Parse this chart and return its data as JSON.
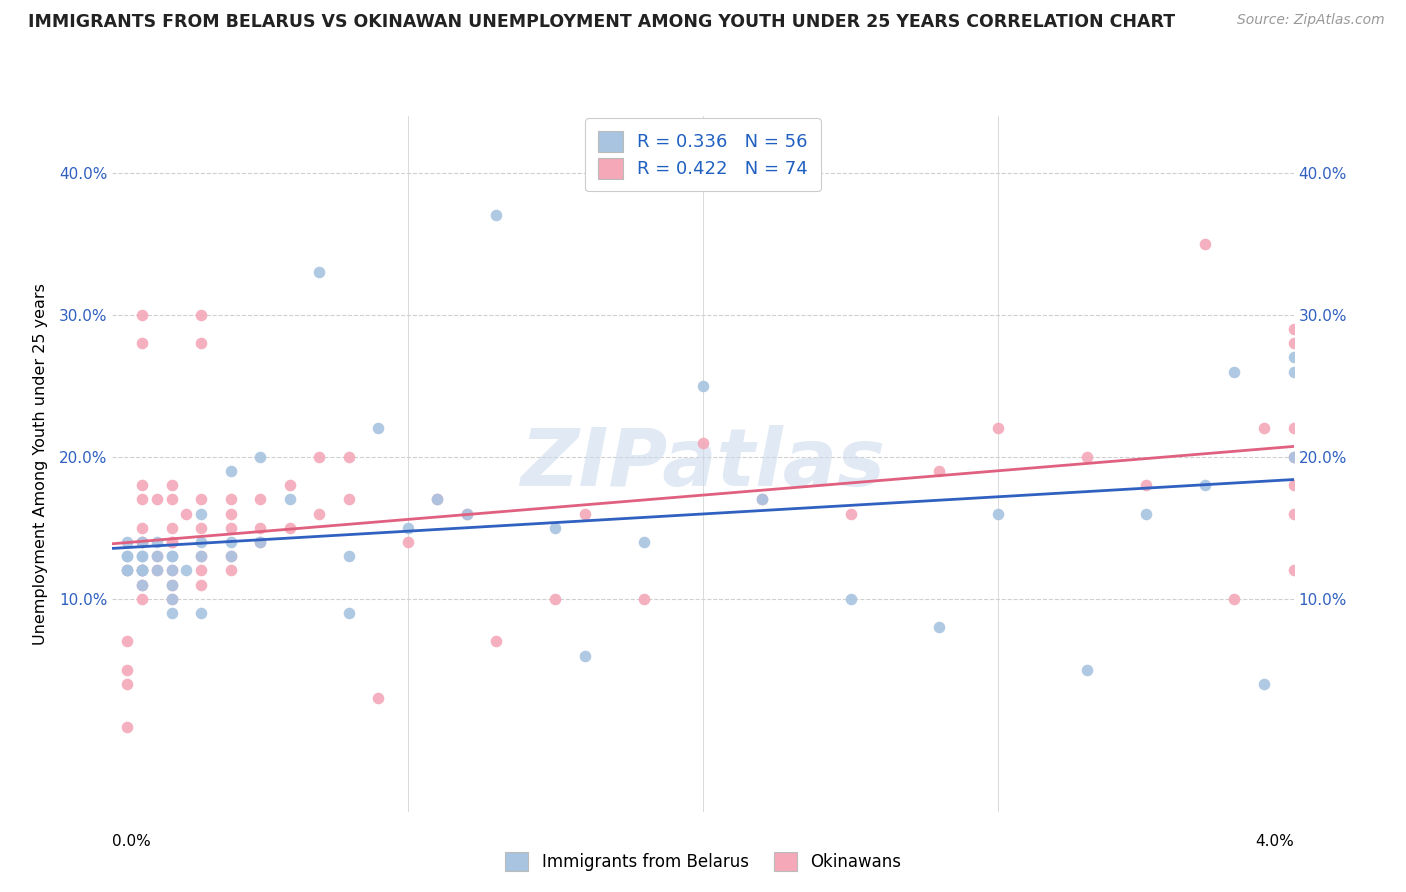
{
  "title": "IMMIGRANTS FROM BELARUS VS OKINAWAN UNEMPLOYMENT AMONG YOUTH UNDER 25 YEARS CORRELATION CHART",
  "source": "Source: ZipAtlas.com",
  "ylabel": "Unemployment Among Youth under 25 years",
  "ytick_labels": [
    "10.0%",
    "20.0%",
    "30.0%",
    "40.0%"
  ],
  "ytick_values": [
    0.1,
    0.2,
    0.3,
    0.4
  ],
  "legend_blue_R": "R = 0.336",
  "legend_blue_N": "N = 56",
  "legend_pink_R": "R = 0.422",
  "legend_pink_N": "N = 74",
  "legend_blue_label": "Immigrants from Belarus",
  "legend_pink_label": "Okinawans",
  "blue_color": "#a8c4e0",
  "pink_color": "#f4a8b8",
  "blue_line_color": "#3060c0",
  "pink_line_color": "#e06080",
  "watermark": "ZIPatlas",
  "xlim": [
    0.0,
    0.04
  ],
  "ylim": [
    -0.05,
    0.44
  ],
  "blue_scatter_x": [
    0.0005,
    0.0005,
    0.0005,
    0.0005,
    0.0005,
    0.001,
    0.001,
    0.001,
    0.001,
    0.001,
    0.001,
    0.001,
    0.0015,
    0.0015,
    0.0015,
    0.002,
    0.002,
    0.002,
    0.002,
    0.002,
    0.002,
    0.0025,
    0.003,
    0.003,
    0.003,
    0.003,
    0.004,
    0.004,
    0.004,
    0.005,
    0.005,
    0.006,
    0.007,
    0.008,
    0.008,
    0.009,
    0.01,
    0.011,
    0.012,
    0.013,
    0.015,
    0.016,
    0.018,
    0.02,
    0.022,
    0.025,
    0.028,
    0.03,
    0.033,
    0.035,
    0.037,
    0.038,
    0.039,
    0.04,
    0.04,
    0.04
  ],
  "blue_scatter_y": [
    0.13,
    0.12,
    0.14,
    0.12,
    0.13,
    0.12,
    0.13,
    0.14,
    0.13,
    0.12,
    0.11,
    0.12,
    0.13,
    0.12,
    0.14,
    0.13,
    0.11,
    0.12,
    0.1,
    0.13,
    0.09,
    0.12,
    0.14,
    0.16,
    0.09,
    0.13,
    0.14,
    0.13,
    0.19,
    0.2,
    0.14,
    0.17,
    0.33,
    0.13,
    0.09,
    0.22,
    0.15,
    0.17,
    0.16,
    0.37,
    0.15,
    0.06,
    0.14,
    0.25,
    0.17,
    0.1,
    0.08,
    0.16,
    0.05,
    0.16,
    0.18,
    0.26,
    0.04,
    0.27,
    0.26,
    0.2
  ],
  "pink_scatter_x": [
    0.0005,
    0.0005,
    0.0005,
    0.0005,
    0.0005,
    0.001,
    0.001,
    0.001,
    0.001,
    0.001,
    0.001,
    0.001,
    0.001,
    0.001,
    0.001,
    0.001,
    0.0015,
    0.0015,
    0.0015,
    0.002,
    0.002,
    0.002,
    0.002,
    0.002,
    0.002,
    0.002,
    0.002,
    0.0025,
    0.003,
    0.003,
    0.003,
    0.003,
    0.003,
    0.003,
    0.003,
    0.004,
    0.004,
    0.004,
    0.004,
    0.004,
    0.005,
    0.005,
    0.005,
    0.006,
    0.006,
    0.007,
    0.007,
    0.008,
    0.008,
    0.009,
    0.01,
    0.011,
    0.012,
    0.013,
    0.015,
    0.016,
    0.018,
    0.02,
    0.022,
    0.025,
    0.028,
    0.03,
    0.033,
    0.035,
    0.037,
    0.038,
    0.039,
    0.04,
    0.04,
    0.04,
    0.04,
    0.04,
    0.04,
    0.04
  ],
  "pink_scatter_y": [
    0.12,
    0.07,
    0.05,
    0.04,
    0.01,
    0.12,
    0.18,
    0.17,
    0.14,
    0.1,
    0.12,
    0.11,
    0.15,
    0.3,
    0.28,
    0.14,
    0.13,
    0.12,
    0.17,
    0.14,
    0.15,
    0.12,
    0.1,
    0.17,
    0.18,
    0.11,
    0.14,
    0.16,
    0.28,
    0.13,
    0.15,
    0.12,
    0.11,
    0.3,
    0.17,
    0.13,
    0.15,
    0.12,
    0.17,
    0.16,
    0.14,
    0.15,
    0.17,
    0.18,
    0.15,
    0.2,
    0.16,
    0.2,
    0.17,
    0.03,
    0.14,
    0.17,
    0.16,
    0.07,
    0.1,
    0.16,
    0.1,
    0.21,
    0.17,
    0.16,
    0.19,
    0.22,
    0.2,
    0.18,
    0.35,
    0.1,
    0.22,
    0.29,
    0.28,
    0.18,
    0.22,
    0.2,
    0.12,
    0.16
  ]
}
